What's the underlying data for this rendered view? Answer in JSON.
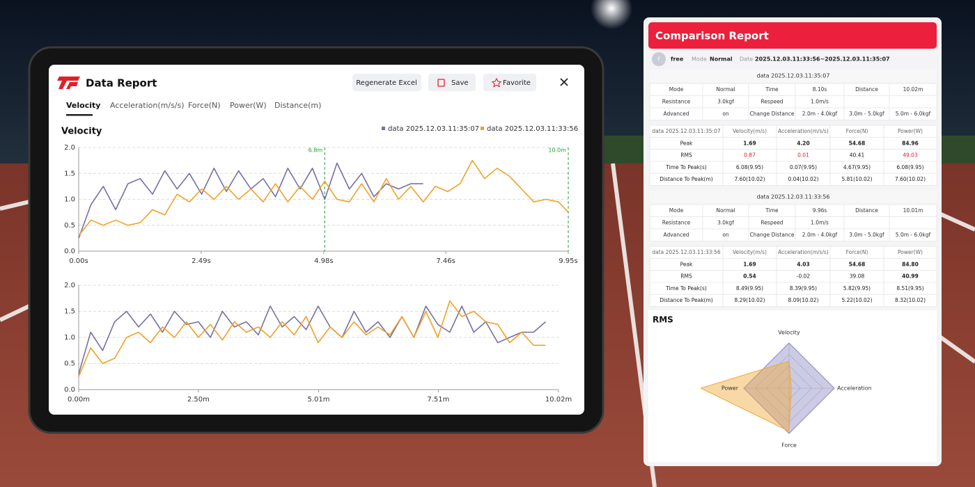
{
  "app": {
    "title": "Data Report",
    "buttons": [
      "Regenerate Excel",
      "Save",
      "Favorite"
    ],
    "tabs": [
      "Velocity",
      "Acceleration(m/s/s)",
      "Force(N)",
      "Power(W)",
      "Distance(m)"
    ]
  },
  "chart_data": [
    {
      "type": "line",
      "title": "Velocity",
      "legend": "top-right",
      "grid": true,
      "x": [
        0,
        0.25,
        0.5,
        0.75,
        1,
        1.25,
        1.5,
        1.75,
        2,
        2.25,
        2.5,
        2.75,
        3,
        3.25,
        3.5,
        3.75,
        4,
        4.25,
        4.5,
        4.75,
        5,
        5.25,
        5.5,
        5.75,
        6,
        6.25,
        6.5,
        6.75,
        7,
        7.25,
        7.5,
        7.75,
        8,
        8.25,
        8.5,
        8.75,
        9,
        9.25,
        9.5,
        9.75,
        9.95
      ],
      "xlim": [
        0,
        9.95
      ],
      "xticks": [
        {
          "value": 0,
          "label": "0.00s"
        },
        {
          "value": 2.49,
          "label": "2.49s"
        },
        {
          "value": 4.98,
          "label": "4.98s"
        },
        {
          "value": 7.46,
          "label": "7.46s"
        },
        {
          "value": 9.95,
          "label": "9.95s"
        }
      ],
      "ylim": [
        0,
        2
      ],
      "yticks": [
        {
          "value": 0,
          "label": "0.0"
        },
        {
          "value": 0.5,
          "label": "0.5"
        },
        {
          "value": 1,
          "label": "1.0"
        },
        {
          "value": 1.5,
          "label": "1.5"
        },
        {
          "value": 2,
          "label": "2.0"
        }
      ],
      "markers": [
        {
          "x": 5.0,
          "label": "6.8m"
        },
        {
          "x": 9.95,
          "label": "10.0m"
        }
      ],
      "series": [
        {
          "name": "data 2025.12.03.11:35:07",
          "color": "#7470a8",
          "values": [
            0.25,
            0.9,
            1.25,
            0.8,
            1.3,
            1.4,
            1.1,
            1.55,
            1.2,
            1.5,
            1.1,
            1.6,
            1.15,
            1.55,
            1.2,
            1.4,
            1.05,
            1.6,
            1.2,
            1.6,
            1.0,
            1.7,
            1.2,
            1.5,
            1.05,
            1.3,
            1.2,
            1.3,
            1.3,
            null,
            null,
            null,
            null,
            null,
            null,
            null,
            null,
            null,
            null,
            null,
            null
          ]
        },
        {
          "name": "data 2025.12.03.11:33:56",
          "color": "#f0a028",
          "values": [
            0.3,
            0.6,
            0.5,
            0.6,
            0.5,
            0.55,
            0.8,
            0.7,
            1.1,
            0.95,
            1.2,
            1.0,
            1.25,
            1.0,
            1.2,
            0.95,
            1.3,
            0.95,
            1.25,
            1.0,
            1.35,
            1.0,
            0.95,
            1.3,
            0.95,
            1.4,
            1.0,
            1.25,
            0.95,
            1.25,
            1.15,
            1.3,
            1.75,
            1.4,
            1.6,
            1.45,
            1.2,
            0.95,
            1.0,
            0.95,
            0.75
          ]
        }
      ]
    },
    {
      "type": "line",
      "grid": true,
      "x": [
        0,
        0.25,
        0.5,
        0.75,
        1,
        1.25,
        1.5,
        1.75,
        2,
        2.25,
        2.5,
        2.75,
        3,
        3.25,
        3.5,
        3.75,
        4,
        4.25,
        4.5,
        4.75,
        5,
        5.25,
        5.5,
        5.75,
        6,
        6.25,
        6.5,
        6.75,
        7,
        7.25,
        7.5,
        7.75,
        8,
        8.25,
        8.5,
        8.75,
        9,
        9.25,
        9.5,
        9.75
      ],
      "xlim": [
        0,
        10.02
      ],
      "xticks": [
        {
          "value": 0,
          "label": "0.00m"
        },
        {
          "value": 2.5,
          "label": "2.50m"
        },
        {
          "value": 5.01,
          "label": "5.01m"
        },
        {
          "value": 7.51,
          "label": "7.51m"
        },
        {
          "value": 10.02,
          "label": "10.02m"
        }
      ],
      "ylim": [
        0,
        2
      ],
      "yticks": [
        {
          "value": 0,
          "label": "0.0"
        },
        {
          "value": 0.5,
          "label": "0.5"
        },
        {
          "value": 1,
          "label": "1.0"
        },
        {
          "value": 1.5,
          "label": "1.5"
        },
        {
          "value": 2,
          "label": "2.0"
        }
      ],
      "series": [
        {
          "color": "#7470a8",
          "values": [
            0.3,
            1.1,
            0.75,
            1.3,
            1.5,
            1.2,
            1.45,
            1.1,
            1.5,
            1.25,
            1.3,
            1.0,
            1.5,
            1.2,
            1.3,
            1.05,
            1.6,
            1.2,
            1.4,
            1.15,
            1.6,
            1.2,
            1.0,
            1.5,
            1.1,
            1.3,
            1.0,
            1.4,
            1.0,
            1.6,
            1.25,
            1.1,
            1.6,
            1.1,
            1.3,
            0.9,
            1.0,
            1.1,
            1.1,
            1.3
          ]
        },
        {
          "color": "#f0a028",
          "values": [
            0.25,
            0.8,
            0.5,
            0.6,
            1.0,
            1.1,
            0.9,
            1.2,
            1.0,
            1.3,
            1.0,
            1.25,
            0.95,
            1.3,
            1.1,
            1.2,
            1.0,
            1.3,
            1.05,
            1.4,
            0.9,
            1.2,
            1.0,
            1.3,
            1.05,
            1.2,
            1.05,
            1.4,
            1.0,
            1.5,
            1.0,
            1.7,
            1.4,
            1.5,
            1.3,
            1.25,
            0.9,
            1.1,
            0.85,
            0.85
          ]
        }
      ]
    },
    {
      "type": "radar",
      "title": "RMS",
      "axes": [
        "Velocity",
        "Acceleration",
        "Force",
        "Power"
      ],
      "rlim": [
        0,
        2
      ],
      "rticks": [
        0.25,
        0.5,
        0.75,
        1
      ],
      "series": [
        {
          "color": "#8e8cc4",
          "values": [
            1,
            1,
            1,
            1
          ]
        },
        {
          "color": "#f0a838",
          "values": [
            0.6,
            0.05,
            0.95,
            1.95
          ]
        }
      ]
    }
  ],
  "report": {
    "title": "Comparison Report",
    "avatar": "f",
    "user": "free",
    "mode_label": "Mode",
    "mode": "Normal",
    "date_label": "Date",
    "date": "2025.12.03.11:33:56~2025.12.03.11:35:07",
    "sessions": [
      {
        "title": "data 2025.12.03.11:35:07",
        "settings": [
          [
            "Mode",
            "Normal",
            "Time",
            "8.10s",
            "Distance",
            "10.02m"
          ],
          [
            "Resistance",
            "3.0kgf",
            "Respeed",
            "1.0m/s"
          ],
          [
            "Advanced",
            "on",
            "Change Distance",
            "2.0m - 4.0kgf",
            "3.0m - 5.0kgf",
            "5.0m - 6.0kgf"
          ]
        ],
        "metrics": [
          [
            "data 2025.12.03.11:35:07",
            "Velocity(m/s)",
            "Acceleration(m/s/s)",
            "Force(N)",
            "Power(W)"
          ],
          [
            "Peak",
            "1.69",
            "4.20",
            "54.68",
            "84.96"
          ],
          [
            "RMS",
            "0.87",
            "0.01",
            "40.41",
            "49.03"
          ],
          [
            "Time To Peak(s)",
            "6.08(9.95)",
            "0.07(9.95)",
            "4.67(9.95)",
            "6.08(9.95)"
          ],
          [
            "Distance To Peak(m)",
            "7.60(10.02)",
            "0.04(10.02)",
            "5.81(10.02)",
            "7.60(10.02)"
          ]
        ]
      },
      {
        "title": "data 2025.12.03.11:33:56",
        "settings": [
          [
            "Mode",
            "Normal",
            "Time",
            "9.96s",
            "Distance",
            "10.01m"
          ],
          [
            "Resistance",
            "3.0kgf",
            "Respeed",
            "1.0m/s"
          ],
          [
            "Advanced",
            "on",
            "Change Distance",
            "2.0m - 4.0kgf",
            "3.0m - 5.0kgf",
            "5.0m - 6.0kgf"
          ]
        ],
        "metrics": [
          [
            "data 2025.12.03.11:33:56",
            "Velocity(m/s)",
            "Acceleration(m/s/s)",
            "Force(N)",
            "Power(W)"
          ],
          [
            "Peak",
            "1.69",
            "4.03",
            "54.68",
            "84.80"
          ],
          [
            "RMS",
            "0.54",
            "-0.02",
            "39.08",
            "40.99"
          ],
          [
            "Time To Peak(s)",
            "8.49(9.95)",
            "8.39(9.95)",
            "5.82(9.95)",
            "8.51(9.95)"
          ],
          [
            "Distance To Peak(m)",
            "8.29(10.02)",
            "8.09(10.02)",
            "5.22(10.02)",
            "8.32(10.02)"
          ]
        ]
      }
    ]
  }
}
